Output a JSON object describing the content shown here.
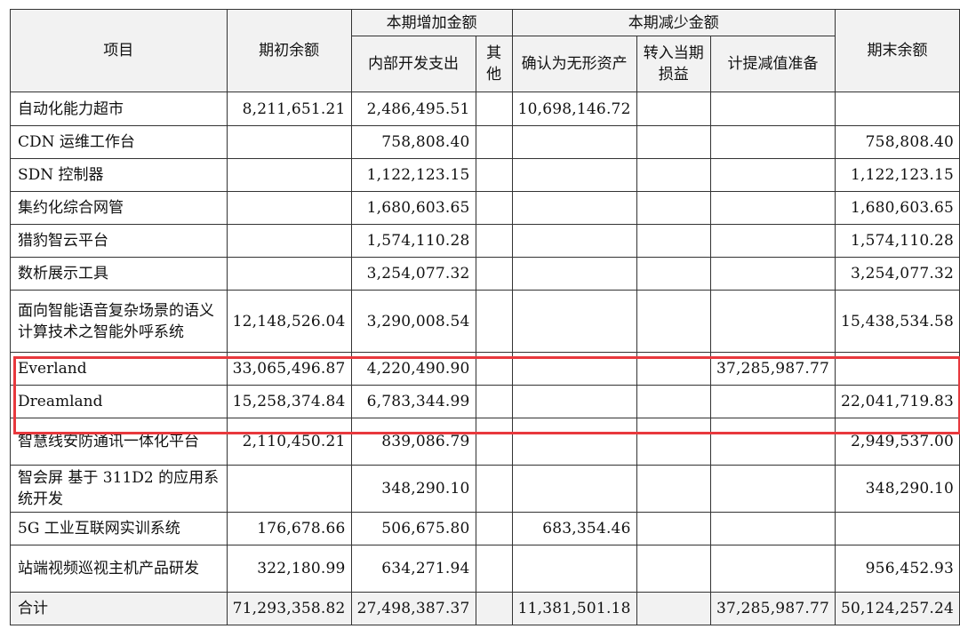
{
  "header": {
    "item": "项目",
    "opening": "期初余额",
    "increase_group": "本期增加金额",
    "decrease_group": "本期减少金额",
    "closing": "期末余额",
    "internal_dev": "内部开发支出",
    "other": "其他",
    "recognized_intangible": "确认为无形资产",
    "to_pnl": "转入当期损益",
    "impairment": "计提减值准备"
  },
  "rows": [
    {
      "name": "自动化能力超市",
      "opening": "8,211,651.21",
      "internal": "2,486,495.51",
      "other": "",
      "recognized": "10,698,146.72",
      "pnl": "",
      "impairment": "",
      "closing": ""
    },
    {
      "name": "CDN 运维工作台",
      "opening": "",
      "internal": "758,808.40",
      "other": "",
      "recognized": "",
      "pnl": "",
      "impairment": "",
      "closing": "758,808.40"
    },
    {
      "name": "SDN 控制器",
      "opening": "",
      "internal": "1,122,123.15",
      "other": "",
      "recognized": "",
      "pnl": "",
      "impairment": "",
      "closing": "1,122,123.15"
    },
    {
      "name": "集约化综合网管",
      "opening": "",
      "internal": "1,680,603.65",
      "other": "",
      "recognized": "",
      "pnl": "",
      "impairment": "",
      "closing": "1,680,603.65"
    },
    {
      "name": "猎豹智云平台",
      "opening": "",
      "internal": "1,574,110.28",
      "other": "",
      "recognized": "",
      "pnl": "",
      "impairment": "",
      "closing": "1,574,110.28"
    },
    {
      "name": "数析展示工具",
      "opening": "",
      "internal": "3,254,077.32",
      "other": "",
      "recognized": "",
      "pnl": "",
      "impairment": "",
      "closing": "3,254,077.32"
    },
    {
      "name": "面向智能语音复杂场景的语义计算技术之智能外呼系统",
      "opening": "12,148,526.04",
      "internal": "3,290,008.54",
      "other": "",
      "recognized": "",
      "pnl": "",
      "impairment": "",
      "closing": "15,438,534.58"
    },
    {
      "name": "Everland",
      "opening": "33,065,496.87",
      "internal": "4,220,490.90",
      "other": "",
      "recognized": "",
      "pnl": "",
      "impairment": "37,285,987.77",
      "closing": ""
    },
    {
      "name": "Dreamland",
      "opening": "15,258,374.84",
      "internal": "6,783,344.99",
      "other": "",
      "recognized": "",
      "pnl": "",
      "impairment": "",
      "closing": "22,041,719.83"
    },
    {
      "name": "智慧线安防通讯一体化平台",
      "opening": "2,110,450.21",
      "internal": "839,086.79",
      "other": "",
      "recognized": "",
      "pnl": "",
      "impairment": "",
      "closing": "2,949,537.00"
    },
    {
      "name": "智会屏 基于 311D2 的应用系统开发",
      "opening": "",
      "internal": "348,290.10",
      "other": "",
      "recognized": "",
      "pnl": "",
      "impairment": "",
      "closing": "348,290.10"
    },
    {
      "name": "5G 工业互联网实训系统",
      "opening": "176,678.66",
      "internal": "506,675.80",
      "other": "",
      "recognized": "683,354.46",
      "pnl": "",
      "impairment": "",
      "closing": ""
    },
    {
      "name": "站端视频巡视主机产品研发",
      "opening": "322,180.99",
      "internal": "634,271.94",
      "other": "",
      "recognized": "",
      "pnl": "",
      "impairment": "",
      "closing": "956,452.93"
    }
  ],
  "total": {
    "name": "合计",
    "opening": "71,293,358.82",
    "internal": "27,498,387.37",
    "other": "",
    "recognized": "11,381,501.18",
    "pnl": "",
    "impairment": "37,285,987.77",
    "closing": "50,124,257.24"
  },
  "highlight_color": "#e8383d"
}
